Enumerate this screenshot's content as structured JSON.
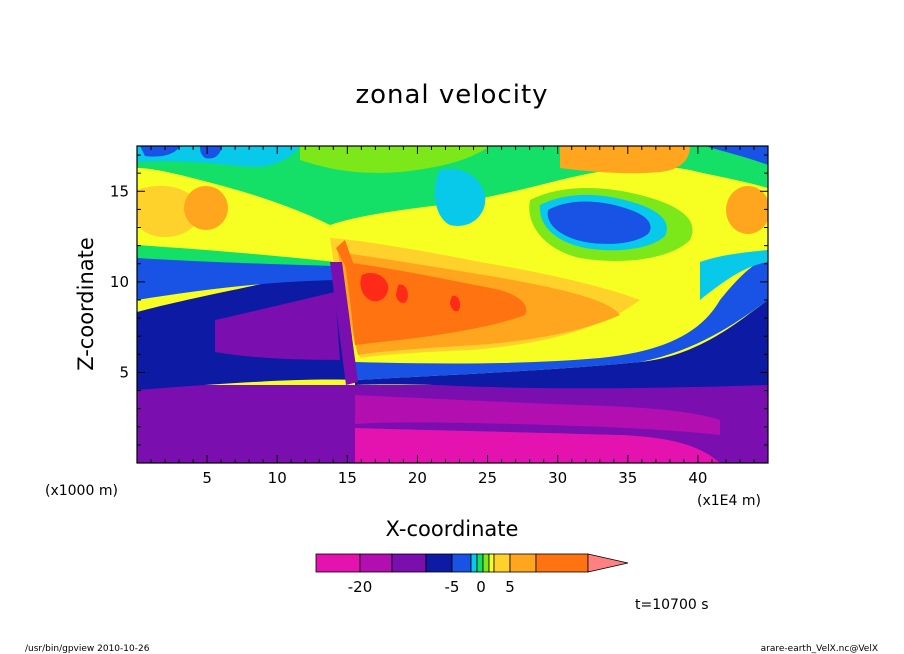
{
  "chart_data": {
    "type": "heatmap",
    "title": "zonal velocity",
    "xlabel": "X-coordinate",
    "ylabel": "Z-coordinate",
    "x_unit_left": "(x1000 m)",
    "x_unit_right": "(x1E4 m)",
    "x_tick_labels": [
      "5",
      "10",
      "15",
      "20",
      "25",
      "30",
      "35",
      "40"
    ],
    "x_ticks": [
      5,
      10,
      15,
      20,
      25,
      30,
      35,
      40
    ],
    "xlim": [
      0,
      45
    ],
    "y_tick_labels": [
      "5",
      "10",
      "15"
    ],
    "y_ticks": [
      5,
      10,
      15
    ],
    "ylim": [
      0,
      17.5
    ],
    "colorbar": {
      "levels": [
        -30,
        -25,
        -20,
        -15,
        -10,
        -5,
        -4,
        -3,
        -2,
        -1,
        0,
        1,
        2,
        3,
        4,
        5,
        10,
        15,
        20
      ],
      "colors": [
        "#e413b0",
        "#b30fb0",
        "#7a0eaf",
        "#0c1aa4",
        "#1853e6",
        "#09c9ea",
        "#14e068",
        "#7ce81a",
        "#f6ff21",
        "#ffd22b",
        "#ffa61e",
        "#ff7411",
        "#ff2a18",
        "#ff8080"
      ],
      "tick_labels": [
        "-20",
        "-5",
        "0",
        "5"
      ],
      "tick_values": [
        -20,
        -5,
        0,
        5
      ]
    },
    "time_label": "t=10700 s"
  },
  "footer": {
    "left": "/usr/bin/gpview   2010-10-26",
    "right": "arare-earth_VelX.nc@VelX"
  }
}
